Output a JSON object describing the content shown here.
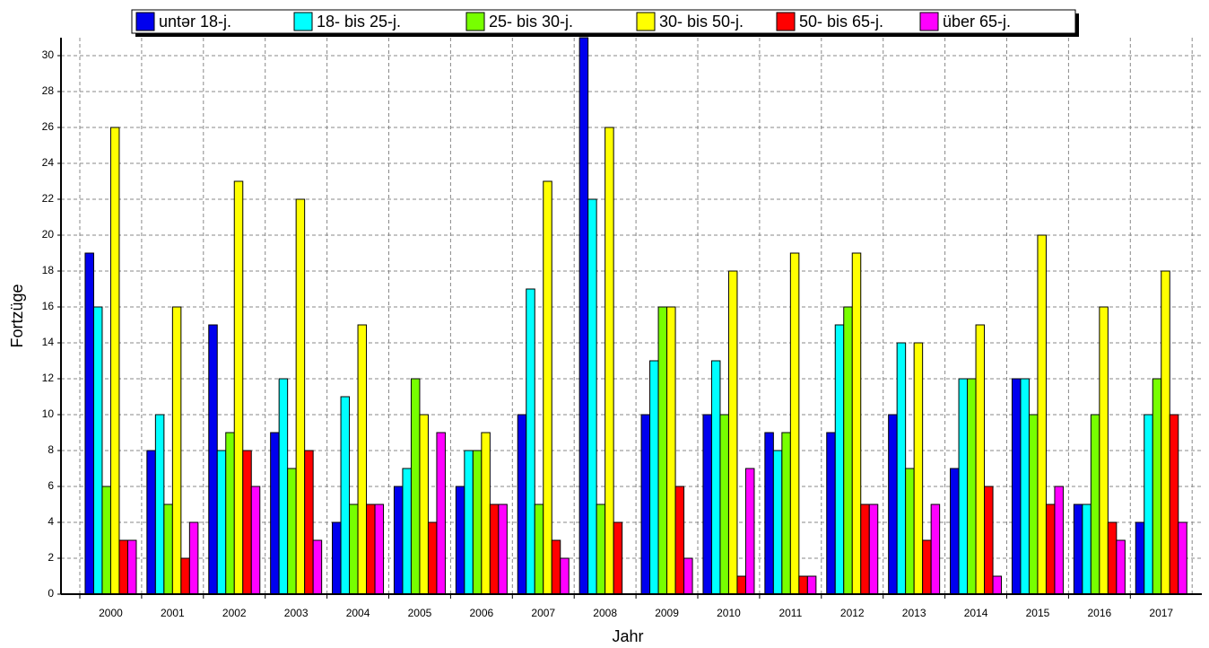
{
  "chart_data": {
    "type": "bar",
    "x_label": "Jahr",
    "y_label": "Fortzüge",
    "categories": [
      "2000",
      "2001",
      "2002",
      "2003",
      "2004",
      "2005",
      "2006",
      "2007",
      "2008",
      "2009",
      "2010",
      "2011",
      "2012",
      "2013",
      "2014",
      "2015",
      "2016",
      "2017"
    ],
    "series": [
      {
        "name": "untər 18-j.",
        "color": "#0000ee",
        "values": [
          19,
          8,
          15,
          9,
          4,
          6,
          6,
          10,
          31,
          10,
          10,
          9,
          9,
          10,
          7,
          12,
          5,
          4
        ]
      },
      {
        "name": "18- bis 25-j.",
        "color": "#00ffff",
        "values": [
          16,
          10,
          8,
          12,
          11,
          7,
          8,
          17,
          22,
          13,
          13,
          8,
          15,
          14,
          12,
          12,
          5,
          10
        ]
      },
      {
        "name": "25- bis 30-j.",
        "color": "#77ff00",
        "values": [
          6,
          5,
          9,
          7,
          5,
          12,
          8,
          5,
          5,
          16,
          10,
          9,
          16,
          7,
          12,
          10,
          10,
          12
        ]
      },
      {
        "name": "30- bis 50-j.",
        "color": "#ffff00",
        "values": [
          26,
          16,
          23,
          22,
          15,
          10,
          9,
          23,
          26,
          16,
          18,
          19,
          19,
          14,
          15,
          20,
          16,
          18
        ]
      },
      {
        "name": "50- bis 65-j.",
        "color": "#ff0000",
        "values": [
          3,
          2,
          8,
          8,
          5,
          4,
          5,
          3,
          4,
          6,
          1,
          1,
          5,
          3,
          6,
          5,
          4,
          10
        ]
      },
      {
        "name": "über 65-j.",
        "color": "#ff00ff",
        "values": [
          3,
          4,
          6,
          3,
          5,
          9,
          5,
          2,
          0,
          2,
          7,
          1,
          5,
          5,
          1,
          6,
          3,
          4
        ]
      }
    ],
    "ylim": [
      0,
      31
    ],
    "yticks": [
      0,
      2,
      4,
      6,
      8,
      10,
      12,
      14,
      16,
      18,
      20,
      22,
      24,
      26,
      28,
      30
    ],
    "grid": true
  }
}
